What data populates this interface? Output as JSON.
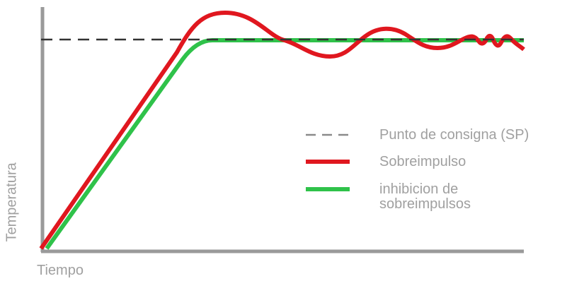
{
  "labels": {
    "x_axis": "Tiempo",
    "y_axis": "Temperatura"
  },
  "legend": [
    {
      "key": "setpoint",
      "label": "Punto de consigna (SP)",
      "color": "#333333",
      "style": "dashed"
    },
    {
      "key": "overshoot",
      "label": "Sobreimpulso",
      "color": "#e0171f",
      "style": "solid"
    },
    {
      "key": "inhibition",
      "label": "inhibicion de\nsobreimpulsos",
      "color": "#2fc24a",
      "style": "solid"
    }
  ],
  "colors": {
    "axis": "#9a9a9a",
    "setpoint": "#333333",
    "overshoot": "#e0171f",
    "inhibition": "#2fc24a",
    "text": "#a0a0a0"
  }
}
